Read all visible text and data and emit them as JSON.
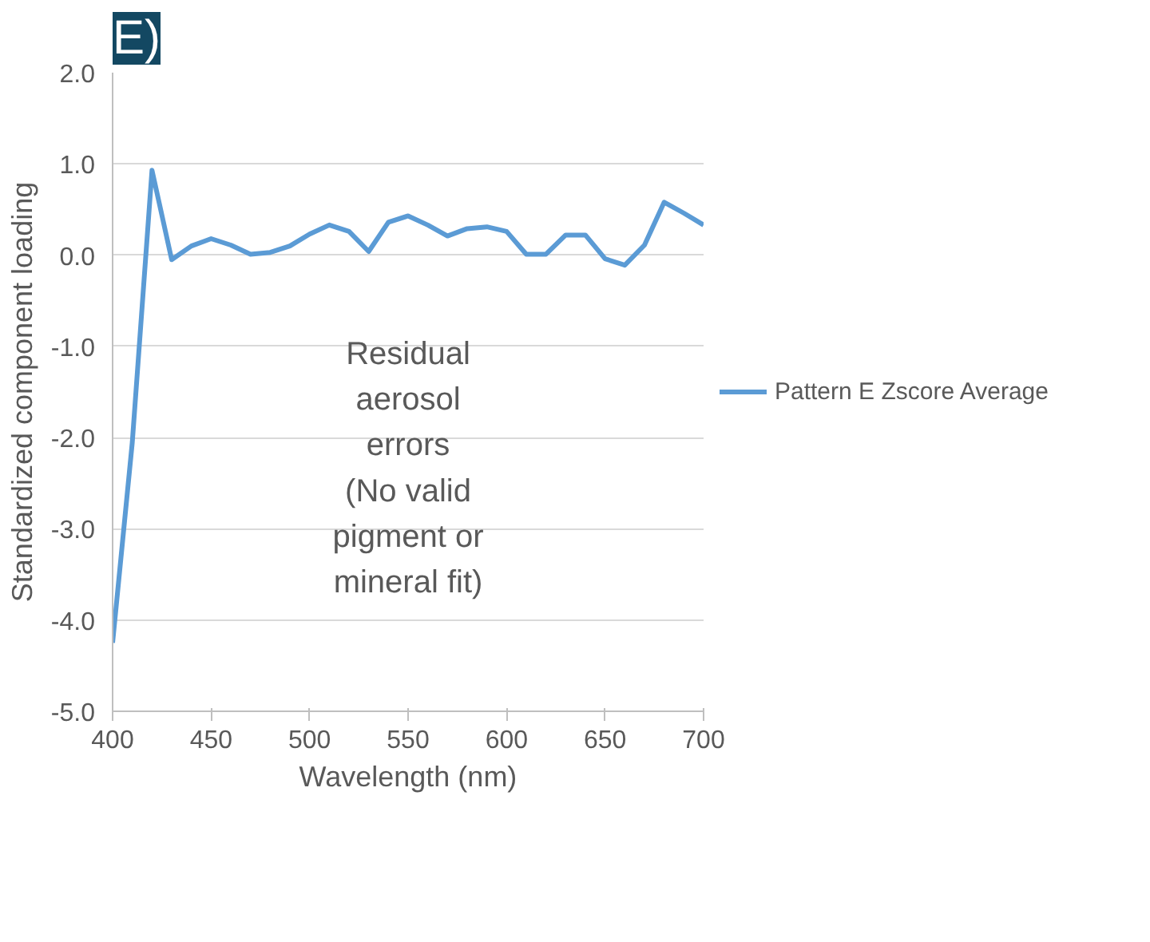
{
  "chart_data": {
    "type": "line",
    "title": "E)",
    "xlabel": "Wavelength (nm)",
    "ylabel": "Standardized component loading",
    "x": [
      400,
      410,
      420,
      430,
      440,
      450,
      460,
      470,
      480,
      490,
      500,
      510,
      520,
      530,
      540,
      550,
      560,
      570,
      580,
      590,
      600,
      610,
      620,
      630,
      640,
      650,
      660,
      670,
      680,
      690,
      700
    ],
    "series": [
      {
        "name": "Pattern E Zscore Average",
        "color": "#5b9bd5",
        "values": [
          -4.25,
          -2.05,
          0.93,
          -0.05,
          0.1,
          0.18,
          0.11,
          0.01,
          0.03,
          0.1,
          0.23,
          0.33,
          0.26,
          0.04,
          0.36,
          0.43,
          0.33,
          0.21,
          0.29,
          0.31,
          0.26,
          0.01,
          0.01,
          0.22,
          0.22,
          -0.04,
          -0.11,
          0.11,
          0.58,
          0.46,
          0.33
        ]
      }
    ],
    "xlim": [
      400,
      700
    ],
    "xticks": [
      400,
      450,
      500,
      550,
      600,
      650,
      700
    ],
    "ylim": [
      -5,
      2
    ],
    "yticks": [
      {
        "value": -5,
        "label": "-5.0"
      },
      {
        "value": -4,
        "label": "-4.0"
      },
      {
        "value": -3,
        "label": "-3.0"
      },
      {
        "value": -2,
        "label": "-2.0"
      },
      {
        "value": -1,
        "label": "-1.0"
      },
      {
        "value": 0,
        "label": "0.0"
      },
      {
        "value": 1,
        "label": "1.0"
      },
      {
        "value": 2,
        "label": "2.0"
      }
    ],
    "grid": "y",
    "legend": "right",
    "marker": "none",
    "line_style": "solid",
    "annotations": [
      "Residual\naerosol\nerrors\n(No valid\npigment or\nmineral fit)"
    ]
  }
}
